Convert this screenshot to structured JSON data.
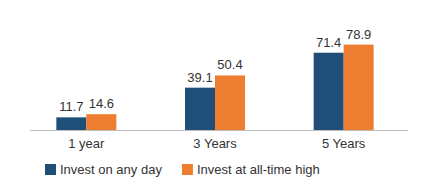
{
  "chart_data": {
    "type": "bar",
    "categories": [
      "1 year",
      "3 Years",
      "5 Years"
    ],
    "series": [
      {
        "name": "Invest on any day",
        "color": "#1f4e79",
        "values": [
          11.7,
          39.1,
          71.4
        ]
      },
      {
        "name": "Invest at all-time high",
        "color": "#ed7d31",
        "values": [
          14.6,
          50.4,
          78.9
        ]
      }
    ],
    "ylim": [
      0,
      85
    ],
    "grid": false,
    "data_labels": true,
    "tick_labels": "x",
    "legend": "bottom"
  }
}
